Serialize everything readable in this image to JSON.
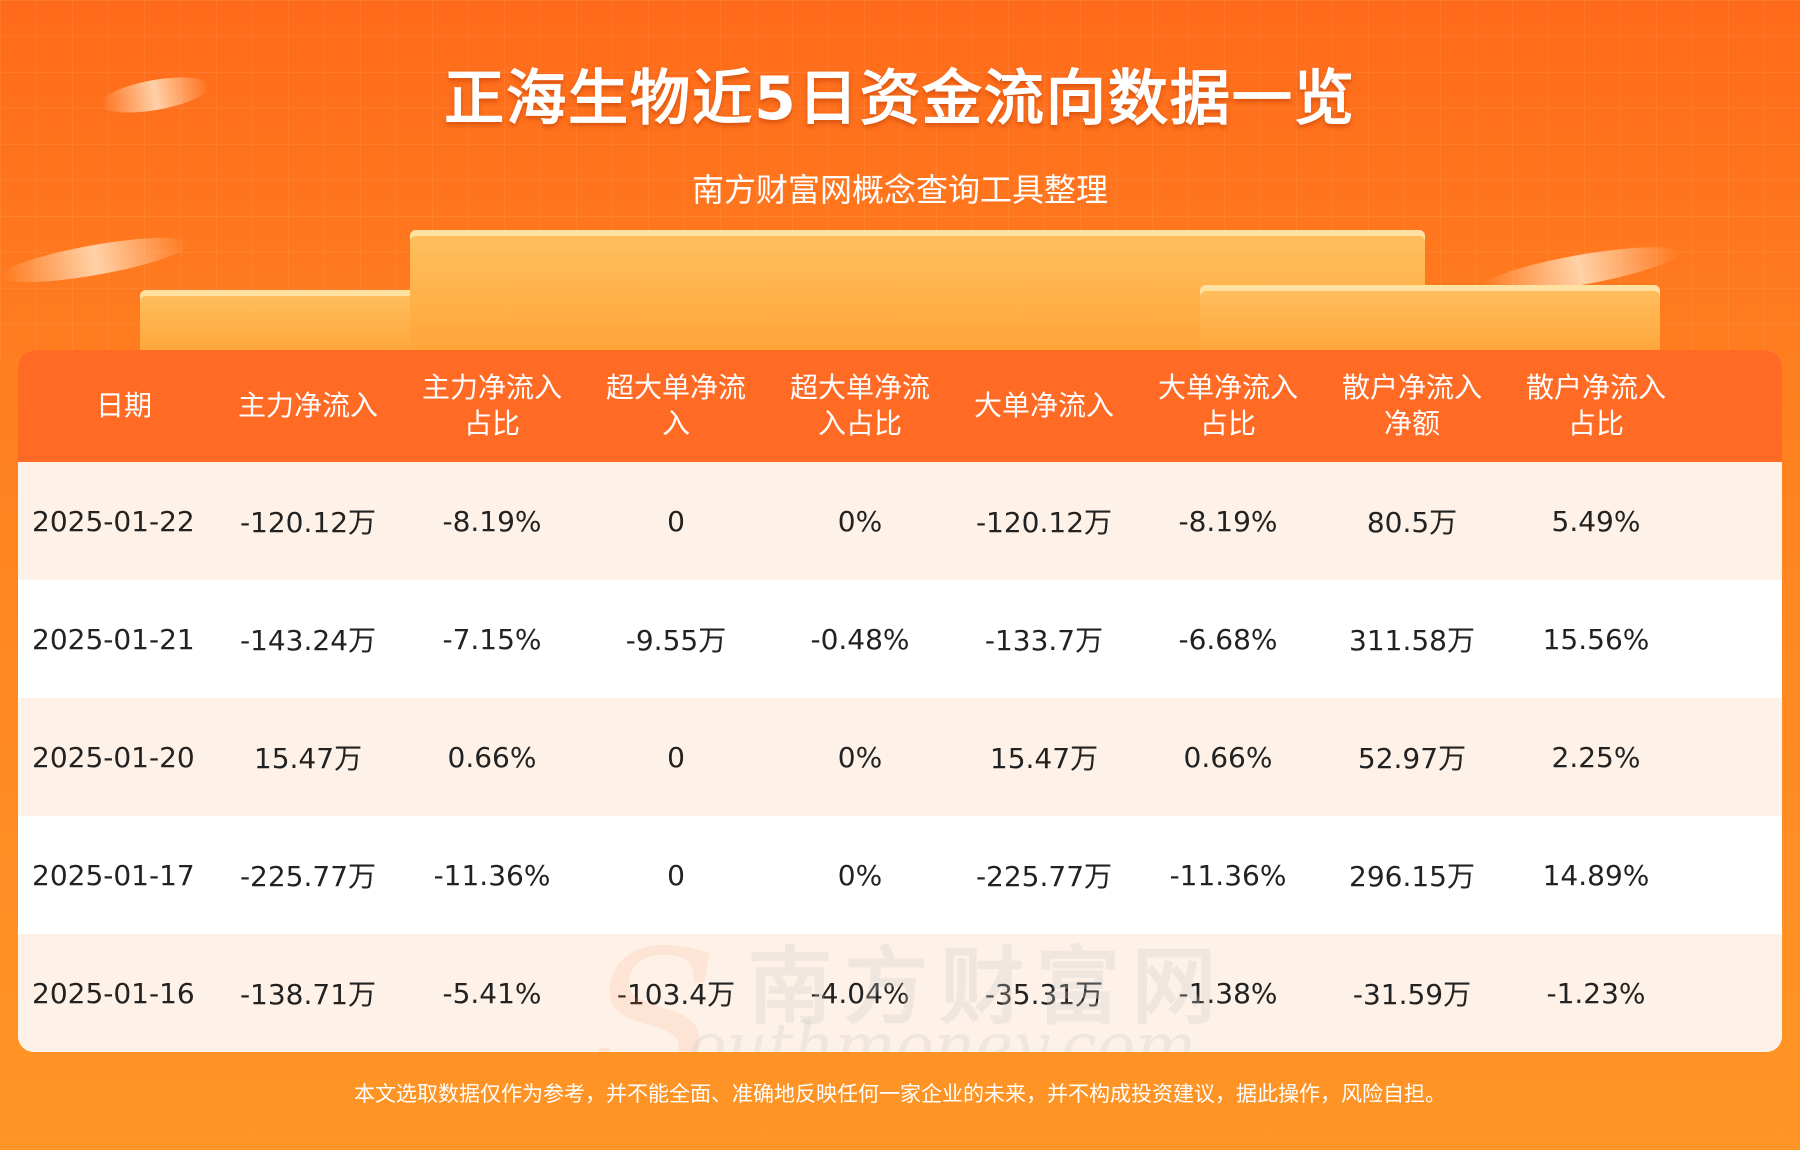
{
  "title": "正海生物近5日资金流向数据一览",
  "subtitle": "南方财富网概念查询工具整理",
  "watermark": {
    "cn": "南方财富网",
    "en": "outhmoney.com",
    "s": "S"
  },
  "disclaimer": "本文选取数据仅作为参考，并不能全面、准确地反映任何一家企业的未来，并不构成投资建议，据此操作，风险自担。",
  "colors": {
    "header": "#ff6a24",
    "row_alt": "#fdf1e8",
    "background": "#ff7d1f"
  },
  "chart_data": {
    "type": "table",
    "columns": [
      "日期",
      "主力净流入",
      "主力净流入\n占比",
      "超大单净流\n入",
      "超大单净流\n入占比",
      "大单净流入",
      "大单净流入\n占比",
      "散户净流入\n净额",
      "散户净流入\n占比"
    ],
    "rows": [
      [
        "2025-01-22",
        "-120.12万",
        "-8.19%",
        "0",
        "0%",
        "-120.12万",
        "-8.19%",
        "80.5万",
        "5.49%"
      ],
      [
        "2025-01-21",
        "-143.24万",
        "-7.15%",
        "-9.55万",
        "-0.48%",
        "-133.7万",
        "-6.68%",
        "311.58万",
        "15.56%"
      ],
      [
        "2025-01-20",
        "15.47万",
        "0.66%",
        "0",
        "0%",
        "15.47万",
        "0.66%",
        "52.97万",
        "2.25%"
      ],
      [
        "2025-01-17",
        "-225.77万",
        "-11.36%",
        "0",
        "0%",
        "-225.77万",
        "-11.36%",
        "296.15万",
        "14.89%"
      ],
      [
        "2025-01-16",
        "-138.71万",
        "-5.41%",
        "-103.4万",
        "-4.04%",
        "-35.31万",
        "-1.38%",
        "-31.59万",
        "-1.23%"
      ]
    ]
  }
}
